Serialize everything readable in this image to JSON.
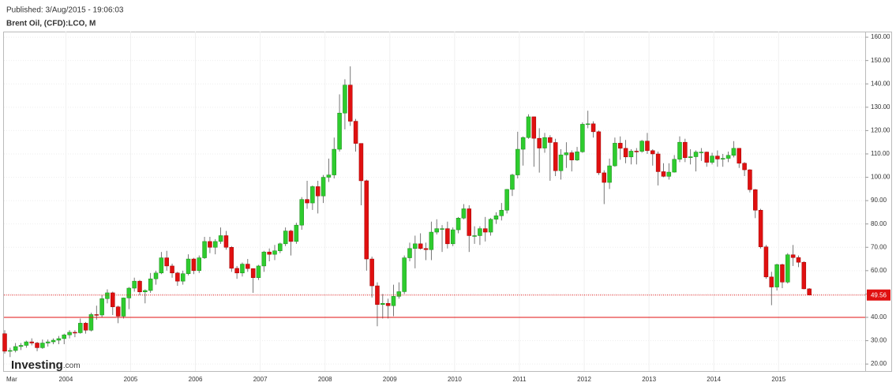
{
  "published": "Published: 3/Aug/2015 - 19:06:03",
  "logo": {
    "name": "Investing",
    "suffix": ".com"
  },
  "chart_data": {
    "type": "candlestick",
    "title": "Brent Oil, (CFD):LCO, M",
    "x": [
      "2003-03",
      "2003-04",
      "2003-05",
      "2003-06",
      "2003-07",
      "2003-08",
      "2003-09",
      "2003-10",
      "2003-11",
      "2003-12",
      "2004-01",
      "2004-02",
      "2004-03",
      "2004-04",
      "2004-05",
      "2004-06",
      "2004-07",
      "2004-08",
      "2004-09",
      "2004-10",
      "2004-11",
      "2004-12",
      "2005-01",
      "2005-02",
      "2005-03",
      "2005-04",
      "2005-05",
      "2005-06",
      "2005-07",
      "2005-08",
      "2005-09",
      "2005-10",
      "2005-11",
      "2005-12",
      "2006-01",
      "2006-02",
      "2006-03",
      "2006-04",
      "2006-05",
      "2006-06",
      "2006-07",
      "2006-08",
      "2006-09",
      "2006-10",
      "2006-11",
      "2006-12",
      "2007-01",
      "2007-02",
      "2007-03",
      "2007-04",
      "2007-05",
      "2007-06",
      "2007-07",
      "2007-08",
      "2007-09",
      "2007-10",
      "2007-11",
      "2007-12",
      "2008-01",
      "2008-02",
      "2008-03",
      "2008-04",
      "2008-05",
      "2008-06",
      "2008-07",
      "2008-08",
      "2008-09",
      "2008-10",
      "2008-11",
      "2008-12",
      "2009-01",
      "2009-02",
      "2009-03",
      "2009-04",
      "2009-05",
      "2009-06",
      "2009-07",
      "2009-08",
      "2009-09",
      "2009-10",
      "2009-11",
      "2009-12",
      "2010-01",
      "2010-02",
      "2010-03",
      "2010-04",
      "2010-05",
      "2010-06",
      "2010-07",
      "2010-08",
      "2010-09",
      "2010-10",
      "2010-11",
      "2010-12",
      "2011-01",
      "2011-02",
      "2011-03",
      "2011-04",
      "2011-05",
      "2011-06",
      "2011-07",
      "2011-08",
      "2011-09",
      "2011-10",
      "2011-11",
      "2011-12",
      "2012-01",
      "2012-02",
      "2012-03",
      "2012-04",
      "2012-05",
      "2012-06",
      "2012-07",
      "2012-08",
      "2012-09",
      "2012-10",
      "2012-11",
      "2012-12",
      "2013-01",
      "2013-02",
      "2013-03",
      "2013-04",
      "2013-05",
      "2013-06",
      "2013-07",
      "2013-08",
      "2013-09",
      "2013-10",
      "2013-11",
      "2013-12",
      "2014-01",
      "2014-02",
      "2014-03",
      "2014-04",
      "2014-05",
      "2014-06",
      "2014-07",
      "2014-08",
      "2014-09",
      "2014-10",
      "2014-11",
      "2014-12",
      "2015-01",
      "2015-02",
      "2015-03",
      "2015-04",
      "2015-05",
      "2015-06",
      "2015-07",
      "2015-08"
    ],
    "open": [
      33,
      25.5,
      25.8,
      27.5,
      28.0,
      29.5,
      29.0,
      27.0,
      29.0,
      29.5,
      30.2,
      30.9,
      32.5,
      33.6,
      33.4,
      37.5,
      34.5,
      41.2,
      41.0,
      48.0,
      50.5,
      44.5,
      40.5,
      48.3,
      52.5,
      55.5,
      50.9,
      51.5,
      56.5,
      59.0,
      65.5,
      62.0,
      59.0,
      55.5,
      58.7,
      65.0,
      60.0,
      65.5,
      72.5,
      70.0,
      72.5,
      75.0,
      70.0,
      61.0,
      59.0,
      62.8,
      60.9,
      57.0,
      62.0,
      68.0,
      67.0,
      68.5,
      71.5,
      77.0,
      72.5,
      79.5,
      90.5,
      89.0,
      96.0,
      92.0,
      100.0,
      101.0,
      112.0,
      127.5,
      139.5,
      124.0,
      114.5,
      98.5,
      65.0,
      53.5,
      45.5,
      46.0,
      45.0,
      49.0,
      51.0,
      65.5,
      69.5,
      71.5,
      69.5,
      69.0,
      76.5,
      78.0,
      78.0,
      71.5,
      77.5,
      82.5,
      86.5,
      75.0,
      75.0,
      78.0,
      76.5,
      82.0,
      83.5,
      85.9,
      94.8,
      101.0,
      112.0,
      117.0,
      125.9,
      116.7,
      112.5,
      117.0,
      114.9,
      102.8,
      109.6,
      110.5,
      107.4,
      110.9,
      122.7,
      122.9,
      119.5,
      101.9,
      97.8,
      104.9,
      114.6,
      112.4,
      108.7,
      111.2,
      111.1,
      115.5,
      111.4,
      110.0,
      102.4,
      100.4,
      102.2,
      107.7,
      115.0,
      108.4,
      108.8,
      110.8,
      110.8,
      106.4,
      109.1,
      107.8,
      108.1,
      109.4,
      112.4,
      106.0,
      103.2,
      94.7,
      85.9,
      70.2,
      57.3,
      52.99,
      62.6,
      55.1,
      66.8,
      65.6,
      63.6,
      52.2
    ],
    "high": [
      34.5,
      27,
      29,
      29,
      30,
      31,
      29.5,
      30.5,
      30.5,
      31,
      32,
      33,
      34.5,
      34.5,
      39.5,
      38,
      42,
      45,
      49.5,
      52,
      51,
      45,
      48.5,
      53,
      57,
      56,
      52,
      59,
      60,
      68,
      68.5,
      63,
      59.5,
      60,
      67,
      65.5,
      66.5,
      74.5,
      74.5,
      73.5,
      78.5,
      77,
      70.5,
      62,
      63.5,
      65,
      61,
      62.5,
      68.5,
      69.5,
      71,
      72,
      78.5,
      77.5,
      80.5,
      91.5,
      98.5,
      96.5,
      98.5,
      101,
      108,
      117,
      135.5,
      142,
      147.5,
      125,
      114.5,
      99,
      66,
      55,
      50,
      48,
      54,
      55,
      66.5,
      72,
      75,
      76,
      72,
      81,
      82,
      79.5,
      81,
      78.5,
      83,
      88.5,
      88,
      79,
      79,
      83,
      82.5,
      85,
      89,
      95,
      101.5,
      119.5,
      117.5,
      127,
      126,
      121,
      119,
      118,
      116.5,
      112,
      115,
      111.5,
      113,
      123.5,
      128.5,
      124,
      120,
      103,
      108,
      117,
      117.5,
      116,
      112,
      112.5,
      116,
      119,
      112,
      111,
      106,
      106,
      109.5,
      117.5,
      116.5,
      112,
      111.5,
      112.5,
      111,
      110.5,
      111.5,
      110,
      111,
      115.5,
      112.5,
      106.5,
      103.5,
      95,
      86.5,
      71,
      59.5,
      63,
      63,
      67.5,
      71,
      66.5,
      64,
      52.5
    ],
    "low": [
      24.5,
      23,
      25,
      26,
      27,
      28,
      25.5,
      26.5,
      27.5,
      28.5,
      28.5,
      28.5,
      31,
      31.5,
      33,
      33,
      34,
      39,
      40,
      46,
      41,
      37.5,
      39.5,
      43.5,
      51,
      49.5,
      46,
      50.5,
      54,
      58.5,
      60,
      57,
      53.5,
      54,
      58,
      58.5,
      59,
      65,
      67.5,
      67,
      71.5,
      69,
      59.5,
      56.5,
      57.5,
      59.5,
      50.5,
      56,
      59.5,
      64,
      64.5,
      67.5,
      70.5,
      66.5,
      71.5,
      77.5,
      86.5,
      86,
      84.5,
      89,
      98,
      99.5,
      111,
      120.5,
      122,
      111,
      88,
      60,
      48.5,
      36.2,
      39.5,
      39.5,
      40.5,
      48,
      50,
      64,
      61,
      69,
      64.5,
      64.5,
      75.5,
      68,
      69.5,
      70.5,
      76,
      82,
      68,
      71.5,
      71,
      72.5,
      75,
      80,
      81.5,
      84.5,
      92,
      99.5,
      105,
      116.5,
      104.5,
      102,
      110.5,
      98.5,
      100.5,
      99,
      104,
      102.5,
      107,
      110.5,
      121,
      117,
      101,
      88.5,
      95,
      104.5,
      107.5,
      106,
      105.5,
      105.5,
      110.5,
      110,
      105,
      96.5,
      100,
      99,
      102,
      106.5,
      106.5,
      105.5,
      102.5,
      107,
      104.5,
      105.5,
      104.5,
      104.5,
      106.5,
      108.5,
      104,
      100.5,
      93.5,
      82.5,
      69.5,
      56.5,
      45.2,
      51.5,
      52.5,
      54.5,
      62,
      61.5,
      52,
      49.5
    ],
    "close": [
      25.5,
      25.8,
      27.5,
      28.0,
      29.5,
      29.0,
      27.0,
      29.0,
      29.5,
      30.2,
      30.9,
      32.5,
      33.6,
      33.4,
      37.5,
      34.5,
      41.2,
      41.0,
      48.0,
      50.5,
      44.5,
      40.5,
      48.3,
      52.5,
      55.5,
      50.9,
      51.5,
      56.5,
      59.0,
      65.5,
      62.0,
      59.0,
      55.5,
      58.7,
      65.0,
      60.0,
      65.5,
      72.5,
      70.0,
      72.5,
      75.0,
      70.0,
      61.0,
      59.0,
      62.8,
      60.9,
      57.0,
      62.0,
      68.0,
      67.0,
      68.5,
      71.5,
      77.0,
      72.5,
      79.5,
      90.5,
      89.0,
      96.0,
      92.0,
      100.0,
      101.0,
      112.0,
      127.5,
      139.5,
      124.0,
      114.5,
      98.5,
      65.0,
      53.5,
      45.5,
      46.0,
      45.0,
      49.0,
      51.0,
      65.5,
      69.5,
      71.5,
      69.5,
      69.0,
      76.5,
      78.0,
      78.0,
      71.5,
      77.5,
      82.5,
      86.5,
      75.0,
      75.0,
      78.0,
      76.5,
      82.0,
      83.5,
      85.9,
      94.8,
      101.0,
      112.0,
      117.0,
      125.9,
      116.7,
      112.5,
      117.0,
      114.9,
      102.8,
      109.6,
      110.5,
      107.4,
      110.9,
      122.7,
      122.9,
      119.5,
      101.9,
      97.8,
      104.9,
      114.6,
      112.4,
      108.7,
      111.2,
      111.1,
      115.5,
      111.4,
      110.0,
      102.4,
      100.4,
      102.2,
      107.7,
      115.0,
      108.4,
      108.8,
      110.8,
      110.8,
      106.4,
      109.1,
      107.8,
      108.1,
      109.4,
      112.4,
      106.0,
      103.2,
      94.7,
      85.9,
      70.2,
      57.3,
      52.99,
      62.6,
      55.1,
      66.8,
      65.6,
      63.6,
      52.2,
      49.56
    ],
    "up_color": "#2ecc2e",
    "down_color": "#e01010",
    "ylim": [
      17,
      162.4
    ],
    "yticks": [
      {
        "value": 20,
        "label": "20.00"
      },
      {
        "value": 30,
        "label": "30.00"
      },
      {
        "value": 40,
        "label": "40.00"
      },
      {
        "value": 50,
        "label": "50.00"
      },
      {
        "value": 60,
        "label": "60.00"
      },
      {
        "value": 70,
        "label": "70.00"
      },
      {
        "value": 80,
        "label": "80.00"
      },
      {
        "value": 90,
        "label": "90.00"
      },
      {
        "value": 100,
        "label": "100.00"
      },
      {
        "value": 110,
        "label": "110.00"
      },
      {
        "value": 120,
        "label": "120.00"
      },
      {
        "value": 130,
        "label": "130.00"
      },
      {
        "value": 140,
        "label": "140.00"
      },
      {
        "value": 150,
        "label": "150.00"
      },
      {
        "value": 160,
        "label": "160.00"
      }
    ],
    "xticks": [
      {
        "value": "2003-03",
        "label": "Mar"
      },
      {
        "value": "2004-01",
        "label": "2004"
      },
      {
        "value": "2005-01",
        "label": "2005"
      },
      {
        "value": "2006-01",
        "label": "2006"
      },
      {
        "value": "2007-01",
        "label": "2007"
      },
      {
        "value": "2008-01",
        "label": "2008"
      },
      {
        "value": "2009-01",
        "label": "2009"
      },
      {
        "value": "2010-01",
        "label": "2010"
      },
      {
        "value": "2011-01",
        "label": "2011"
      },
      {
        "value": "2012-01",
        "label": "2012"
      },
      {
        "value": "2013-01",
        "label": "2013"
      },
      {
        "value": "2014-01",
        "label": "2014"
      },
      {
        "value": "2015-01",
        "label": "2015"
      }
    ],
    "reference_line": 40,
    "reference_color": "#e01010",
    "grid": true
  }
}
